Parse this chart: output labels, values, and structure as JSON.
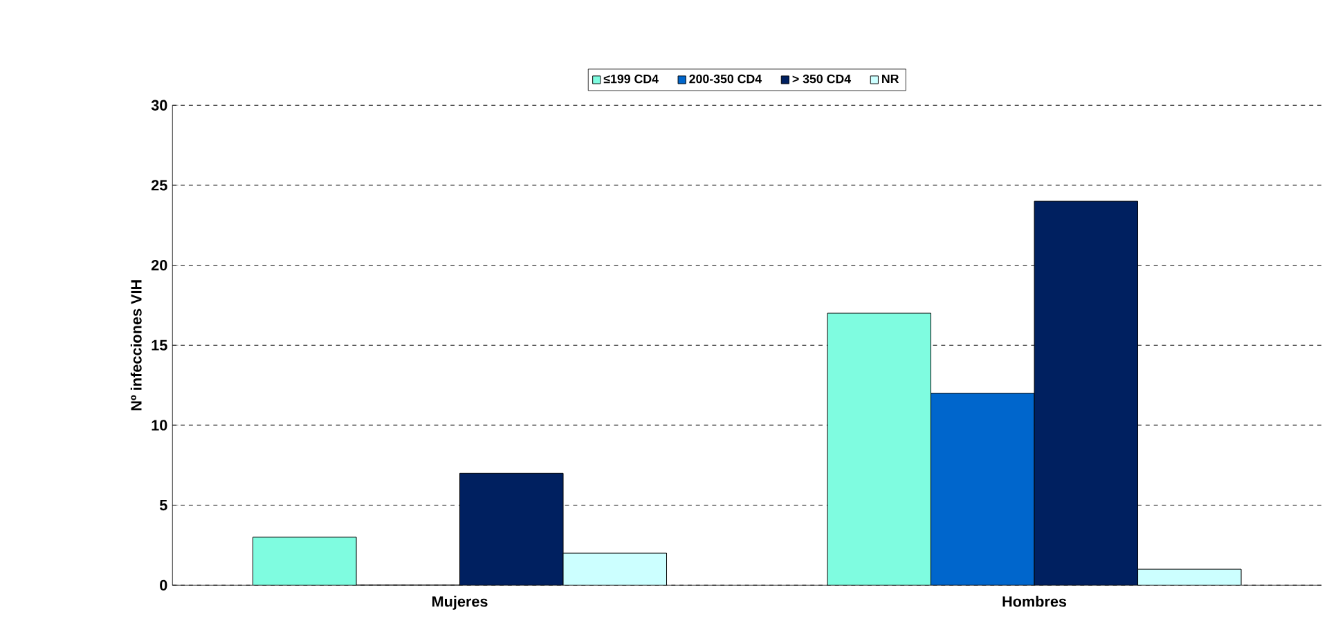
{
  "chart_data": {
    "type": "bar",
    "ylabel": "Nº infecciones VIH",
    "categories": [
      "Mujeres",
      "Hombres"
    ],
    "series": [
      {
        "name": "≤199 CD4",
        "color": "#7ffce0",
        "values": [
          3,
          17
        ]
      },
      {
        "name": "200-350 CD4",
        "color": "#0066cc",
        "values": [
          0,
          12
        ]
      },
      {
        "name": "> 350 CD4",
        "color": "#002060",
        "values": [
          7,
          24
        ]
      },
      {
        "name": "NR",
        "color": "#ccffff",
        "values": [
          2,
          1
        ]
      }
    ],
    "ylim": [
      0,
      30
    ],
    "yticks": [
      0,
      5,
      10,
      15,
      20,
      25,
      30
    ],
    "grid": "y",
    "legend": "top"
  }
}
